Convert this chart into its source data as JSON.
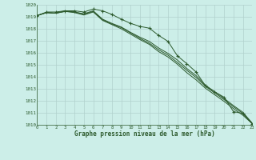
{
  "x": [
    0,
    1,
    2,
    3,
    4,
    5,
    6,
    7,
    8,
    9,
    10,
    11,
    12,
    13,
    14,
    15,
    16,
    17,
    18,
    19,
    20,
    21,
    22,
    23
  ],
  "line_marker": [
    1019.1,
    1019.4,
    1019.4,
    1019.5,
    1019.5,
    1019.4,
    1019.65,
    1019.5,
    1019.2,
    1018.8,
    1018.45,
    1018.2,
    1018.05,
    1017.45,
    1016.95,
    1015.75,
    1015.1,
    1014.4,
    1013.25,
    1012.75,
    1012.3,
    1011.1,
    1010.95,
    1010.1
  ],
  "line_smooth1": [
    1019.1,
    1019.35,
    1019.3,
    1019.45,
    1019.4,
    1019.2,
    1019.45,
    1018.75,
    1018.4,
    1018.1,
    1017.65,
    1017.2,
    1016.8,
    1016.25,
    1015.8,
    1015.2,
    1014.55,
    1013.95,
    1013.2,
    1012.65,
    1012.1,
    1011.5,
    1010.95,
    1010.1
  ],
  "line_smooth2": [
    1019.1,
    1019.35,
    1019.3,
    1019.45,
    1019.35,
    1019.15,
    1019.4,
    1018.7,
    1018.35,
    1018.0,
    1017.55,
    1017.1,
    1016.7,
    1016.1,
    1015.65,
    1015.05,
    1014.35,
    1013.75,
    1013.05,
    1012.5,
    1011.95,
    1011.35,
    1010.8,
    1010.1
  ],
  "line_smooth3": [
    1019.1,
    1019.35,
    1019.3,
    1019.5,
    1019.4,
    1019.25,
    1019.5,
    1018.8,
    1018.45,
    1018.15,
    1017.7,
    1017.3,
    1016.95,
    1016.4,
    1015.95,
    1015.4,
    1014.7,
    1014.1,
    1013.3,
    1012.75,
    1012.2,
    1011.6,
    1011.05,
    1010.15
  ],
  "ylim": [
    1010,
    1020
  ],
  "yticks": [
    1010,
    1011,
    1012,
    1013,
    1014,
    1015,
    1016,
    1017,
    1018,
    1019,
    1020
  ],
  "xlim": [
    0,
    23
  ],
  "xticks": [
    0,
    1,
    2,
    3,
    4,
    5,
    6,
    7,
    8,
    9,
    10,
    11,
    12,
    13,
    14,
    15,
    16,
    17,
    18,
    19,
    20,
    21,
    22,
    23
  ],
  "xlabel": "Graphe pression niveau de la mer (hPa)",
  "bg_color": "#cceee8",
  "grid_color": "#b0d0cc",
  "line_color": "#2d5a2d",
  "tick_color": "#2d5a2d"
}
